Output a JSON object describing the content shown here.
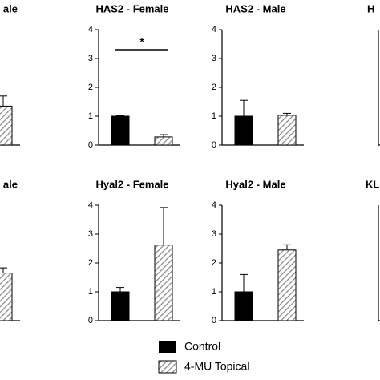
{
  "chart_data": [
    {
      "type": "bar",
      "title": "ale",
      "ylim": [
        0,
        4
      ],
      "series": [
        {
          "name": "4-MU Topical",
          "color": "#bfbfbf",
          "pattern": "hatch",
          "values": [
            1.35
          ],
          "errors": [
            0.35
          ]
        }
      ]
    },
    {
      "type": "bar",
      "title": "HAS2 - Female",
      "ylim": [
        0,
        4
      ],
      "yticks": [
        0,
        1,
        2,
        3,
        4
      ],
      "annotation": "*",
      "series": [
        {
          "name": "Control",
          "color": "#000000",
          "pattern": "solid",
          "values": [
            1.0
          ],
          "errors": [
            0.02
          ]
        },
        {
          "name": "4-MU Topical",
          "color": "#bfbfbf",
          "pattern": "hatch",
          "values": [
            0.28
          ],
          "errors": [
            0.08
          ]
        }
      ]
    },
    {
      "type": "bar",
      "title": "HAS2 - Male",
      "ylim": [
        0,
        4
      ],
      "yticks": [
        0,
        1,
        2,
        3,
        4
      ],
      "series": [
        {
          "name": "Control",
          "color": "#000000",
          "pattern": "solid",
          "values": [
            1.0
          ],
          "errors": [
            0.55
          ]
        },
        {
          "name": "4-MU Topical",
          "color": "#bfbfbf",
          "pattern": "hatch",
          "values": [
            1.03
          ],
          "errors": [
            0.07
          ]
        }
      ]
    },
    {
      "type": "bar",
      "title": "H",
      "ylim": [
        0,
        4
      ]
    },
    {
      "type": "bar",
      "title": "ale",
      "ylim": [
        0,
        4
      ],
      "series": [
        {
          "name": "4-MU Topical",
          "color": "#bfbfbf",
          "pattern": "hatch",
          "values": [
            1.65
          ],
          "errors": [
            0.18
          ]
        }
      ]
    },
    {
      "type": "bar",
      "title": "Hyal2 - Female",
      "ylim": [
        0,
        4
      ],
      "yticks": [
        0,
        1,
        2,
        3,
        4
      ],
      "series": [
        {
          "name": "Control",
          "color": "#000000",
          "pattern": "solid",
          "values": [
            1.0
          ],
          "errors": [
            0.15
          ]
        },
        {
          "name": "4-MU Topical",
          "color": "#bfbfbf",
          "pattern": "hatch",
          "values": [
            2.62
          ],
          "errors": [
            1.3
          ]
        }
      ]
    },
    {
      "type": "bar",
      "title": "Hyal2 - Male",
      "ylim": [
        0,
        4
      ],
      "yticks": [
        0,
        1,
        2,
        3,
        4
      ],
      "series": [
        {
          "name": "Control",
          "color": "#000000",
          "pattern": "solid",
          "values": [
            1.0
          ],
          "errors": [
            0.6
          ]
        },
        {
          "name": "4-MU Topical",
          "color": "#bfbfbf",
          "pattern": "hatch",
          "values": [
            2.45
          ],
          "errors": [
            0.18
          ]
        }
      ]
    },
    {
      "type": "bar",
      "title": "KL",
      "ylim": [
        0,
        4
      ]
    }
  ]
}
